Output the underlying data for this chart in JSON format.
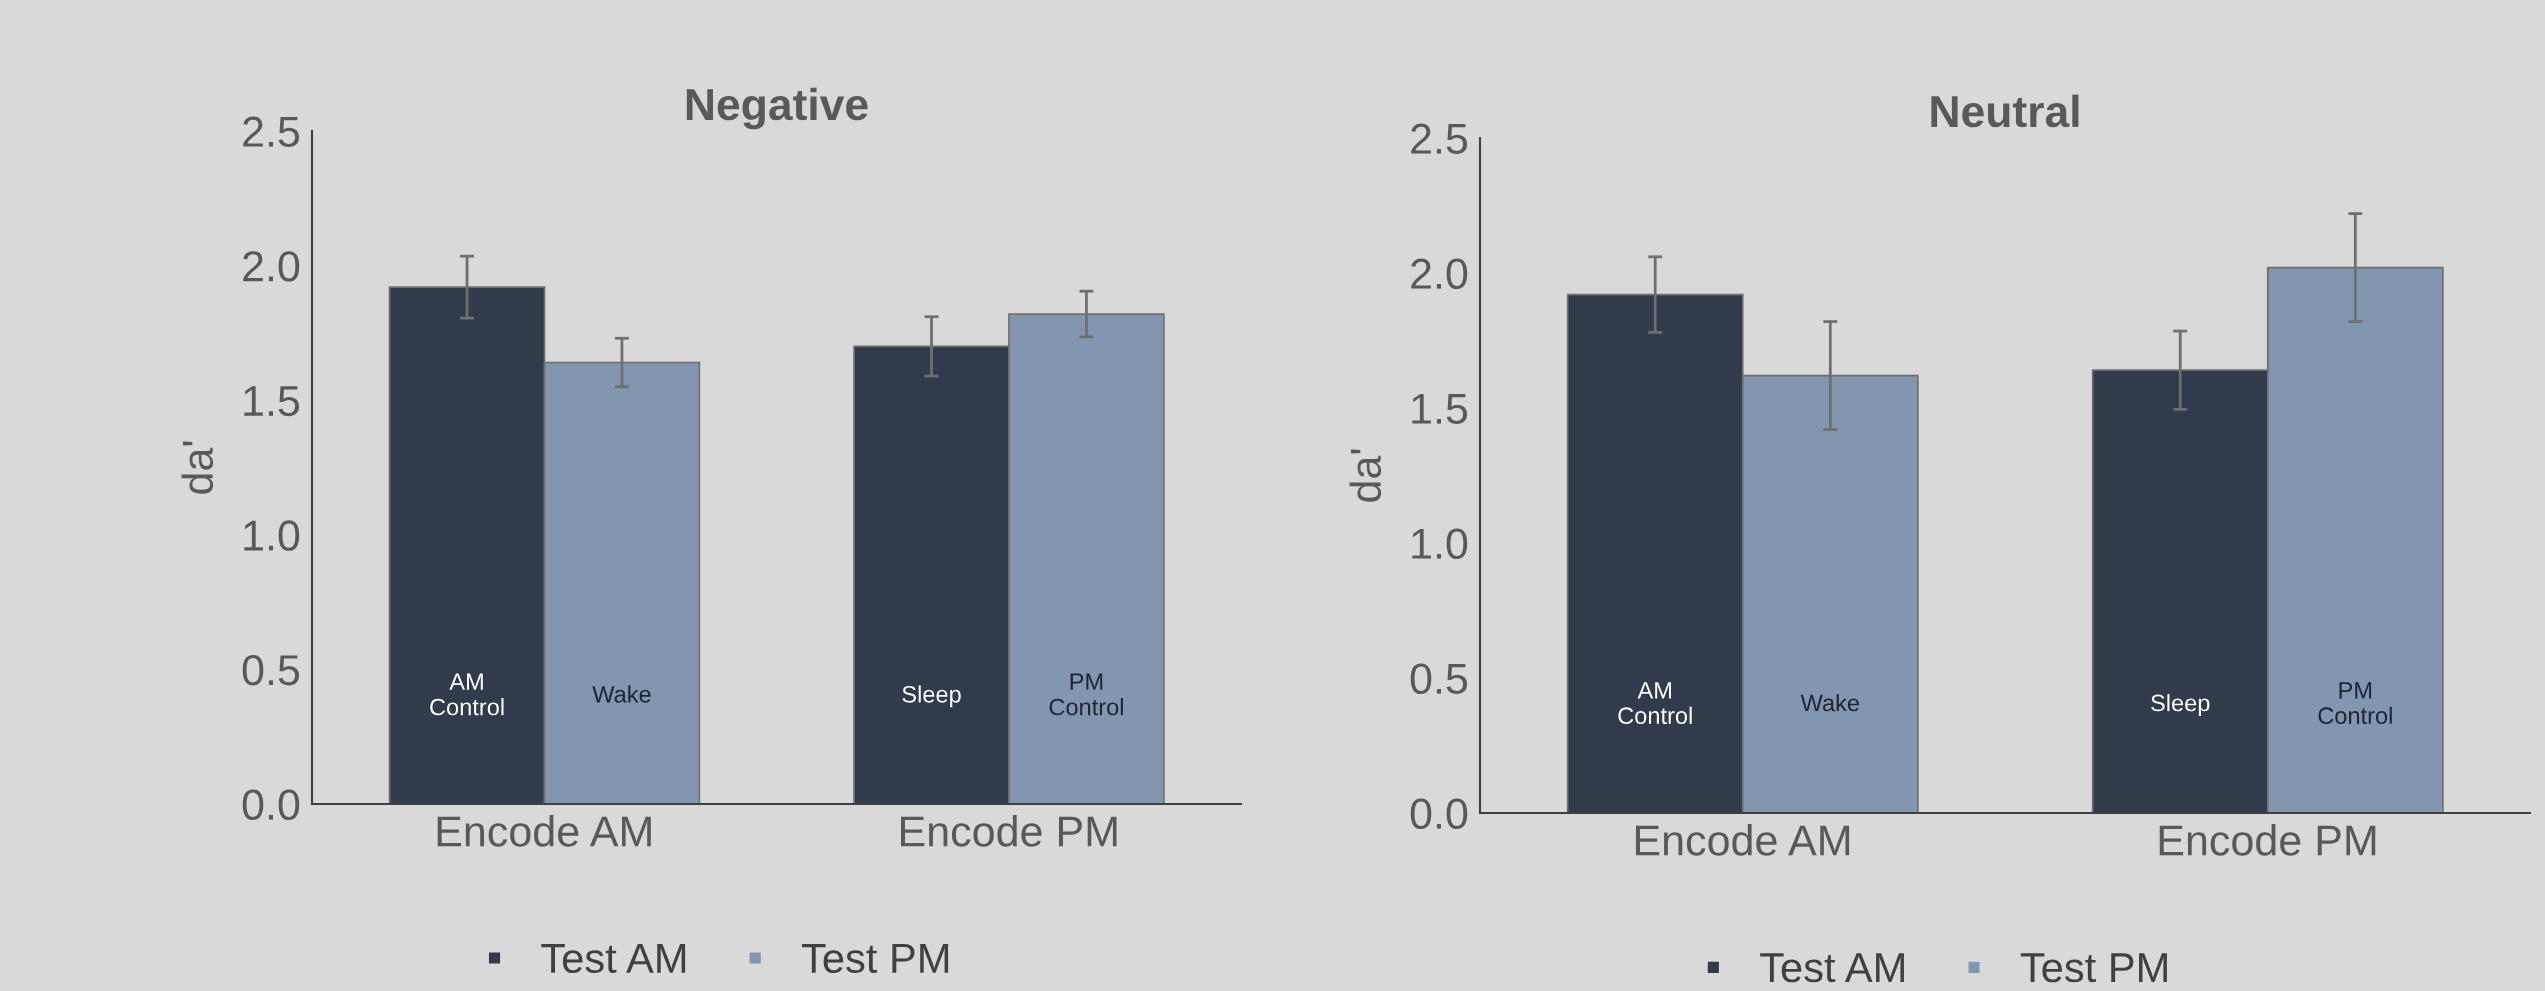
{
  "chart_data": [
    {
      "type": "bar",
      "title": "Negative",
      "ylabel": "da'",
      "categories": [
        "Encode AM",
        "Encode PM"
      ],
      "ylim": [
        0,
        2.5
      ],
      "yticks": [
        {
          "value": 0,
          "label": "0.0"
        },
        {
          "value": 0.5,
          "label": "0.5"
        },
        {
          "value": 1,
          "label": "1.0"
        },
        {
          "value": 1.5,
          "label": "1.5"
        },
        {
          "value": 2,
          "label": "2.0"
        },
        {
          "value": 2.5,
          "label": "2.5"
        }
      ],
      "grid": false,
      "legend": "bottom",
      "series": [
        {
          "name": "Test AM",
          "color": "#313b4c",
          "values": [
            1.92,
            1.7
          ],
          "errors": [
            0.115,
            0.11
          ]
        },
        {
          "name": "Test PM",
          "color": "#8396b0",
          "values": [
            1.64,
            1.82
          ],
          "errors": [
            0.09,
            0.085
          ]
        }
      ],
      "annotations": [
        "AM\nControl",
        "Wake",
        "Sleep",
        "PM\nControl"
      ]
    },
    {
      "type": "bar",
      "title": "Neutral",
      "ylabel": "da'",
      "categories": [
        "Encode AM",
        "Encode PM"
      ],
      "ylim": [
        0,
        2.5
      ],
      "yticks": [
        {
          "value": 0,
          "label": "0.0"
        },
        {
          "value": 0.5,
          "label": "0.5"
        },
        {
          "value": 1,
          "label": "1.0"
        },
        {
          "value": 1.5,
          "label": "1.5"
        },
        {
          "value": 2,
          "label": "2.0"
        },
        {
          "value": 2.5,
          "label": "2.5"
        }
      ],
      "grid": false,
      "legend": "bottom",
      "series": [
        {
          "name": "Test AM",
          "color": "#313b4c",
          "values": [
            1.92,
            1.64
          ],
          "errors": [
            0.14,
            0.145
          ]
        },
        {
          "name": "Test PM",
          "color": "#8396b0",
          "values": [
            1.62,
            2.02
          ],
          "errors": [
            0.2,
            0.2
          ]
        }
      ],
      "annotations": [
        "AM\nControl",
        "Wake",
        "Sleep",
        "PM\nControl"
      ]
    }
  ]
}
